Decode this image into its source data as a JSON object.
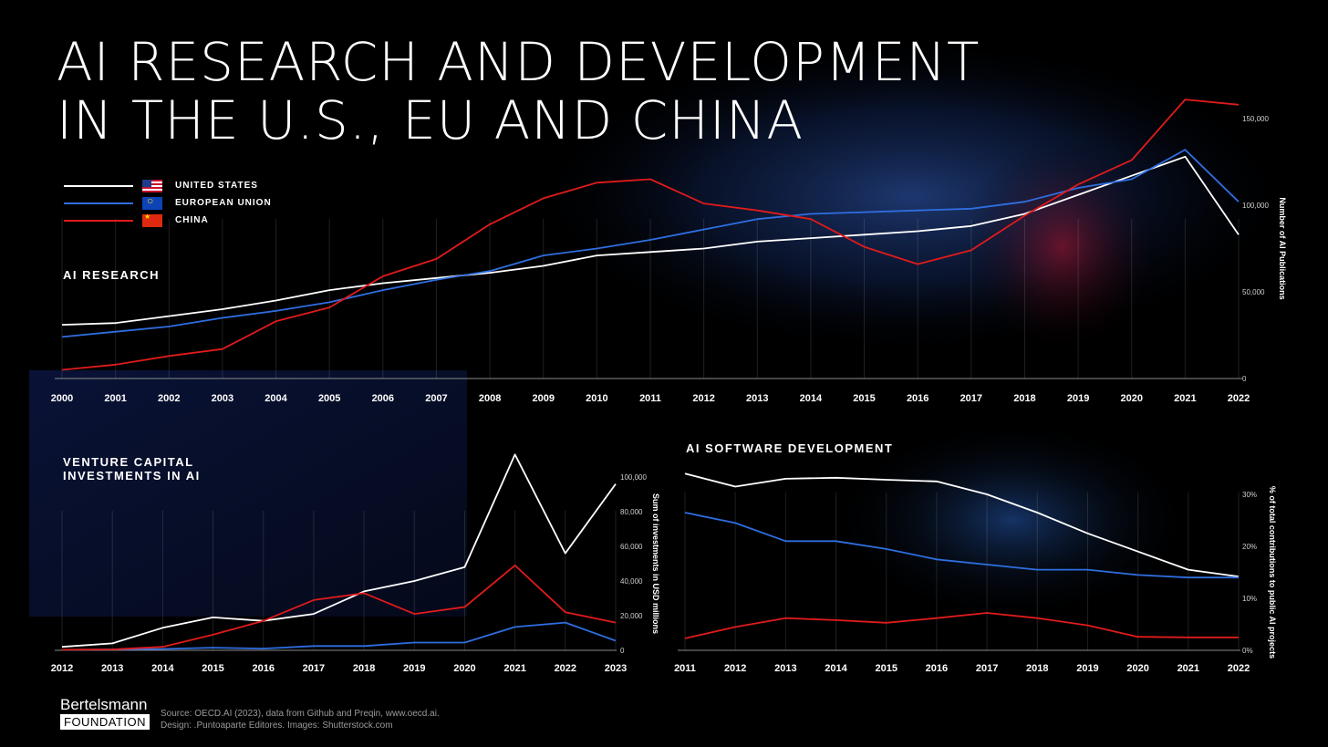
{
  "title": {
    "line1": "AI RESEARCH AND DEVELOPMENT",
    "line2": "IN THE U.S., EU AND CHINA"
  },
  "legend": [
    {
      "label": "UNITED STATES",
      "color": "#ffffff",
      "flag": "us-flag-icon"
    },
    {
      "label": "EUROPEAN UNION",
      "color": "#2f6ee0",
      "flag": "eu-flag-icon"
    },
    {
      "label": "CHINA",
      "color": "#e01b1b",
      "flag": "cn-flag-icon"
    }
  ],
  "sections": {
    "research": "AI RESEARCH",
    "vc_line1": "VENTURE CAPITAL",
    "vc_line2": "INVESTMENTS IN AI",
    "software": "AI SOFTWARE DEVELOPMENT"
  },
  "footer": {
    "logo_top": "Bertelsmann",
    "logo_bottom": "FOUNDATION",
    "source": "Source: OECD.AI (2023), data from Github and Preqin, www.oecd.ai.",
    "design": "Design: .Puntoaparte Editores. Images: Shutterstock.com"
  },
  "chart_data": [
    {
      "type": "line",
      "title": "AI RESEARCH",
      "ylabel": "Number of AI Publications",
      "ylim": [
        0,
        150000
      ],
      "yticks": [
        "0",
        "50,000",
        "100,000",
        "150,000"
      ],
      "ytick_values": [
        0,
        50000,
        100000,
        150000
      ],
      "categories": [
        "2000",
        "2001",
        "2002",
        "2003",
        "2004",
        "2005",
        "2006",
        "2007",
        "2008",
        "2009",
        "2010",
        "2011",
        "2012",
        "2013",
        "2014",
        "2015",
        "2016",
        "2017",
        "2018",
        "2019",
        "2020",
        "2021",
        "2022"
      ],
      "series": [
        {
          "name": "UNITED STATES",
          "color": "#ffffff",
          "values": [
            31000,
            32000,
            36000,
            40000,
            45000,
            51000,
            55000,
            58000,
            61000,
            65000,
            71000,
            73000,
            75000,
            79000,
            81000,
            83000,
            85000,
            88000,
            95000,
            106000,
            117000,
            128000,
            83000
          ]
        },
        {
          "name": "EUROPEAN UNION",
          "color": "#2f6ee0",
          "values": [
            24000,
            27000,
            30000,
            35000,
            39000,
            44000,
            51000,
            57000,
            62000,
            71000,
            75000,
            80000,
            86000,
            92000,
            95000,
            96000,
            97000,
            98000,
            102000,
            110000,
            115000,
            132000,
            102000
          ]
        },
        {
          "name": "CHINA",
          "color": "#e01b1b",
          "values": [
            5000,
            8000,
            13000,
            17000,
            33000,
            41000,
            59000,
            69000,
            89000,
            104000,
            113000,
            115000,
            101000,
            97000,
            92000,
            76000,
            66000,
            74000,
            94000,
            112000,
            126000,
            161000,
            158000
          ]
        }
      ]
    },
    {
      "type": "line",
      "title": "VENTURE CAPITAL INVESTMENTS IN AI",
      "ylabel": "Sum of investments in USD millions",
      "ylim": [
        0,
        100000
      ],
      "yticks": [
        "0",
        "20,000",
        "40,000",
        "60,000",
        "80,000",
        "100,000"
      ],
      "ytick_values": [
        0,
        20000,
        40000,
        60000,
        80000,
        100000
      ],
      "categories": [
        "2012",
        "2013",
        "2014",
        "2015",
        "2016",
        "2017",
        "2018",
        "2019",
        "2020",
        "2021",
        "2022",
        "2023"
      ],
      "series": [
        {
          "name": "UNITED STATES",
          "color": "#ffffff",
          "values": [
            2000,
            4000,
            13000,
            19000,
            17000,
            21000,
            34000,
            40000,
            48000,
            113000,
            56000,
            96000
          ]
        },
        {
          "name": "EUROPEAN UNION",
          "color": "#2f6ee0",
          "values": [
            300,
            500,
            800,
            1500,
            1000,
            2500,
            2500,
            4500,
            4500,
            13500,
            16000,
            5500
          ]
        },
        {
          "name": "CHINA",
          "color": "#e01b1b",
          "values": [
            300,
            500,
            2000,
            9000,
            17000,
            29000,
            33000,
            21000,
            25000,
            49000,
            22000,
            16000
          ]
        }
      ]
    },
    {
      "type": "line",
      "title": "AI SOFTWARE DEVELOPMENT",
      "ylabel": "% of total contributions to public AI projects",
      "ylim": [
        0,
        30
      ],
      "yticks": [
        "0%",
        "10%",
        "20%",
        "30%"
      ],
      "ytick_values": [
        0,
        10,
        20,
        30
      ],
      "categories": [
        "2011",
        "2012",
        "2013",
        "2014",
        "2015",
        "2016",
        "2017",
        "2018",
        "2019",
        "2020",
        "2021",
        "2022"
      ],
      "series": [
        {
          "name": "UNITED STATES",
          "color": "#ffffff",
          "values": [
            34,
            31.5,
            33,
            33.2,
            32.8,
            32.5,
            30,
            26.5,
            22.5,
            19,
            15.5,
            14.2
          ]
        },
        {
          "name": "EUROPEAN UNION",
          "color": "#2f6ee0",
          "values": [
            26.5,
            24.5,
            21,
            21,
            19.5,
            17.5,
            16.5,
            15.5,
            15.5,
            14.5,
            14,
            14
          ]
        },
        {
          "name": "CHINA",
          "color": "#e01b1b",
          "values": [
            2.3,
            4.5,
            6.2,
            5.8,
            5.3,
            6.2,
            7.2,
            6.2,
            4.8,
            2.6,
            2.5,
            2.5
          ]
        }
      ]
    }
  ]
}
